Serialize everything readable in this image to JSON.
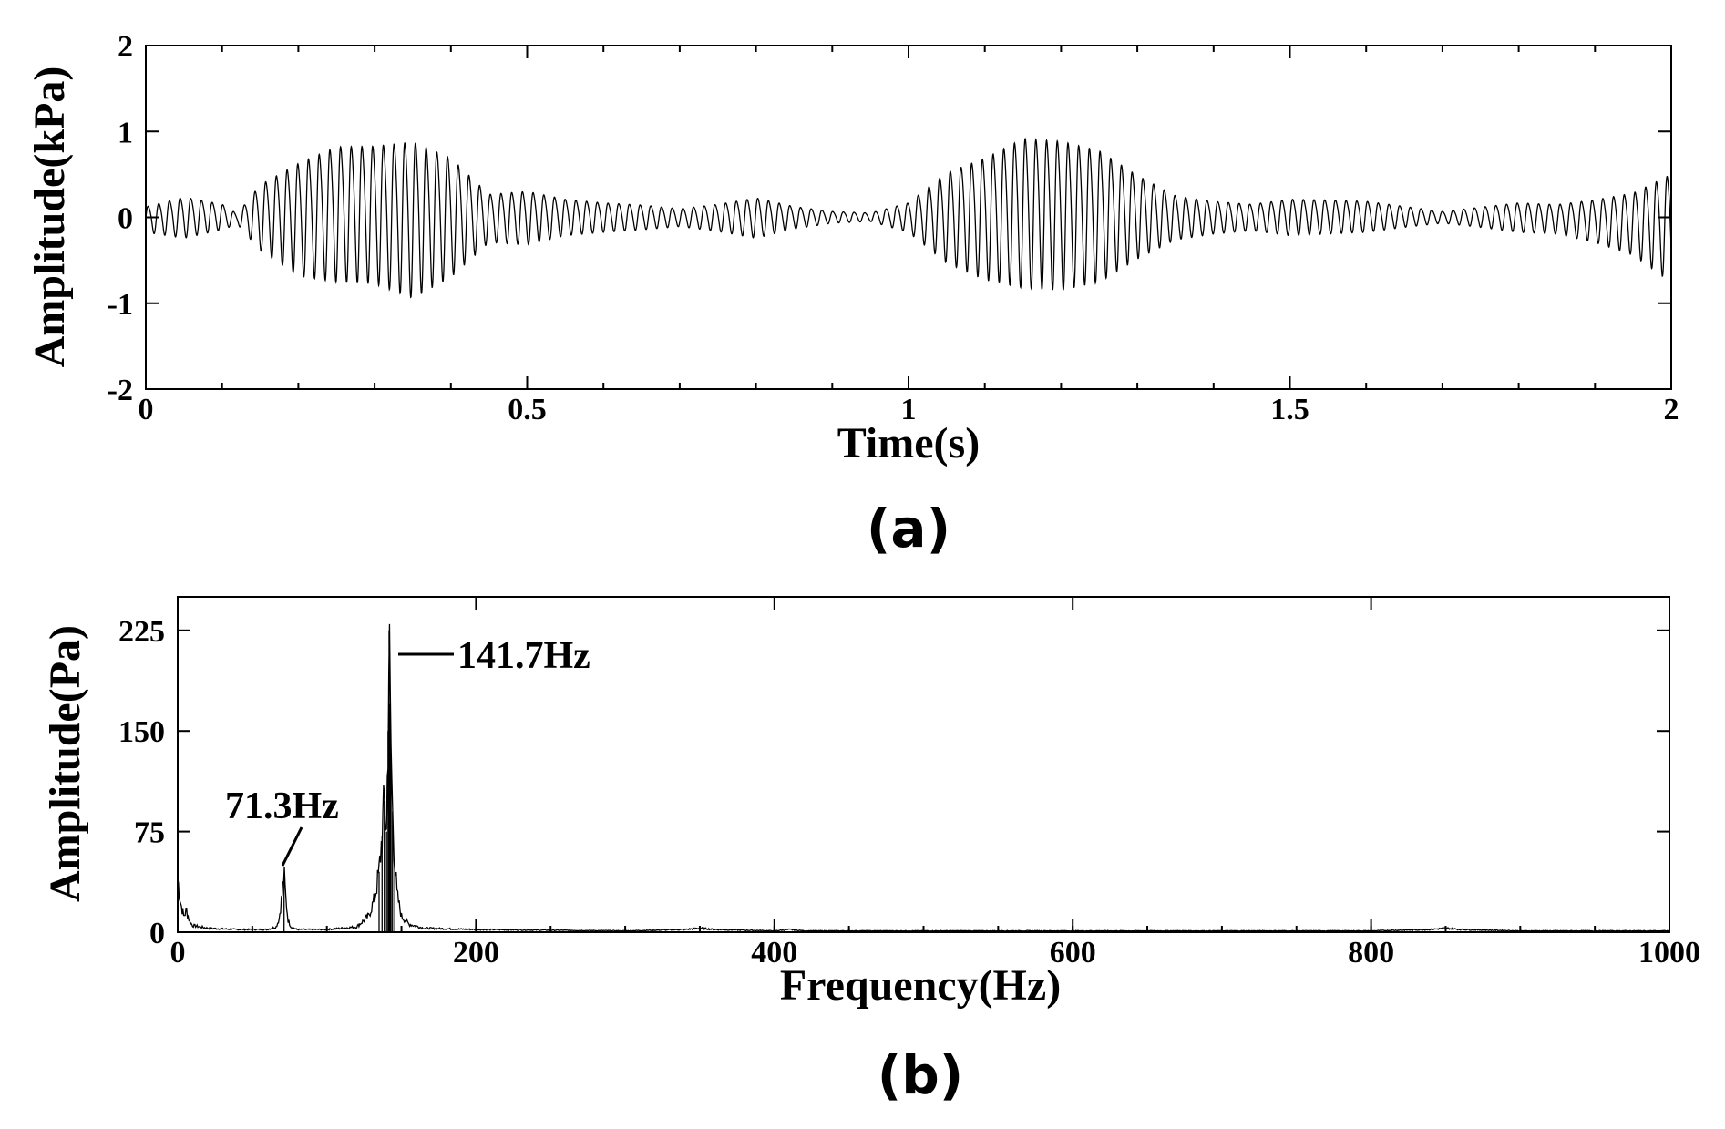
{
  "chart_data": [
    {
      "panel": "(a)",
      "type": "line",
      "xlabel": "Time(s)",
      "ylabel": "Amplitude(kPa)",
      "xlim": [
        0,
        2
      ],
      "ylim": [
        -2,
        2
      ],
      "xticks": [
        0,
        0.5,
        1,
        1.5,
        2
      ],
      "xtick_labels": [
        "0",
        "0.5",
        "1",
        "1.5",
        "2"
      ],
      "yticks": [
        -2,
        -1,
        0,
        1,
        2
      ],
      "ytick_labels": [
        "-2",
        "-1",
        "0",
        "1",
        "2"
      ],
      "grid": false,
      "signal": {
        "carrier_frequency_hz": 71.3,
        "envelope": {
          "t": [
            0,
            0.05,
            0.1,
            0.12,
            0.15,
            0.2,
            0.25,
            0.3,
            0.35,
            0.4,
            0.45,
            0.5,
            0.55,
            0.6,
            0.65,
            0.7,
            0.75,
            0.8,
            0.85,
            0.9,
            0.95,
            1.0,
            1.05,
            1.1,
            1.15,
            1.2,
            1.25,
            1.3,
            1.35,
            1.4,
            1.45,
            1.5,
            1.55,
            1.6,
            1.65,
            1.7,
            1.75,
            1.8,
            1.85,
            1.9,
            1.95,
            2.0
          ],
          "upper": [
            0.15,
            0.28,
            0.18,
            0.05,
            0.45,
            0.75,
            0.97,
            0.98,
            1.05,
            0.82,
            0.32,
            0.36,
            0.25,
            0.2,
            0.17,
            0.12,
            0.18,
            0.27,
            0.15,
            0.08,
            0.06,
            0.2,
            0.62,
            0.82,
            1.08,
            1.05,
            0.92,
            0.58,
            0.3,
            0.22,
            0.18,
            0.25,
            0.24,
            0.22,
            0.15,
            0.08,
            0.14,
            0.2,
            0.18,
            0.25,
            0.35,
            0.62
          ],
          "lower": [
            -0.18,
            -0.25,
            -0.15,
            -0.08,
            -0.4,
            -0.7,
            -0.78,
            -0.8,
            -0.97,
            -0.72,
            -0.3,
            -0.33,
            -0.22,
            -0.18,
            -0.15,
            -0.11,
            -0.17,
            -0.25,
            -0.14,
            -0.07,
            -0.05,
            -0.18,
            -0.55,
            -0.75,
            -0.85,
            -0.88,
            -0.78,
            -0.5,
            -0.27,
            -0.2,
            -0.16,
            -0.22,
            -0.2,
            -0.18,
            -0.12,
            -0.07,
            -0.12,
            -0.18,
            -0.2,
            -0.3,
            -0.45,
            -0.78
          ]
        }
      }
    },
    {
      "panel": "(b)",
      "type": "line",
      "xlabel": "Frequency(Hz)",
      "ylabel": "Amplitude(Pa)",
      "xlim": [
        0,
        1000
      ],
      "ylim": [
        0,
        250
      ],
      "xticks": [
        0,
        200,
        400,
        600,
        800,
        1000
      ],
      "xtick_labels": [
        "0",
        "200",
        "400",
        "600",
        "800",
        "1000"
      ],
      "yticks": [
        0,
        75,
        150,
        225
      ],
      "ytick_labels": [
        "0",
        "75",
        "150",
        "225"
      ],
      "grid": false,
      "series": [
        {
          "x": [
            0,
            2,
            4,
            6,
            8,
            10,
            20,
            40,
            60,
            66,
            68,
            70,
            71.3,
            72.5,
            74,
            76,
            80,
            100,
            120,
            128,
            132,
            135,
            137,
            138.5,
            140,
            141,
            141.7,
            142.3,
            143,
            144,
            145.5,
            147,
            150,
            155,
            165,
            200,
            300,
            340,
            350,
            360,
            400,
            410,
            420,
            500,
            600,
            700,
            800,
            840,
            850,
            860,
            900,
            1000
          ],
          "y": [
            40,
            22,
            12,
            16,
            8,
            5,
            3,
            2,
            2,
            4,
            10,
            28,
            43,
            25,
            9,
            4,
            2,
            2,
            4,
            12,
            25,
            45,
            72,
            98,
            75,
            150,
            225,
            170,
            138,
            90,
            55,
            28,
            12,
            6,
            3,
            2,
            1,
            2,
            3,
            2,
            1,
            2,
            1,
            1,
            1,
            1,
            1,
            2,
            3,
            2,
            1,
            1
          ]
        }
      ],
      "annotations": [
        {
          "text": "71.3Hz",
          "x": 71.3,
          "y": 43
        },
        {
          "text": "141.7Hz",
          "x": 141.7,
          "y": 225
        }
      ]
    }
  ]
}
